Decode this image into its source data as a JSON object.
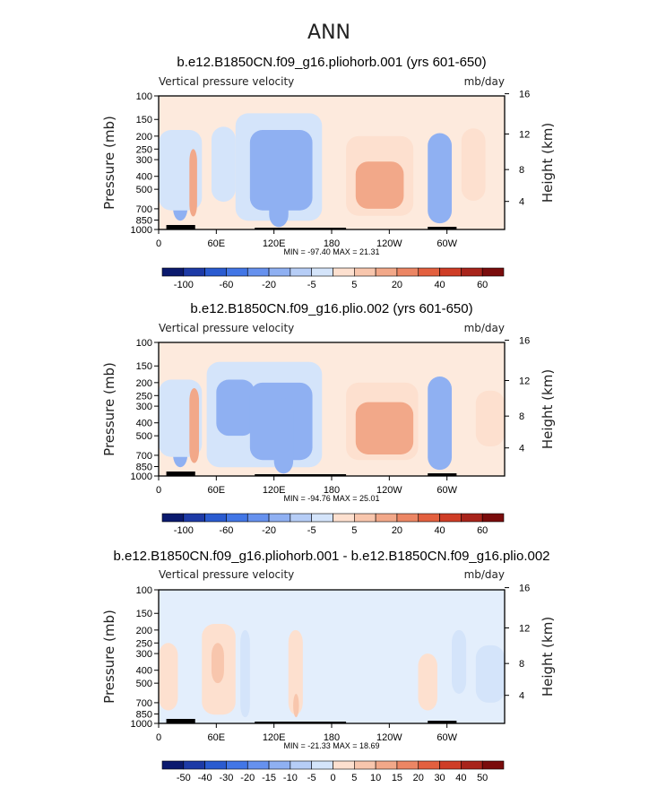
{
  "figure": {
    "title": "ANN"
  },
  "chart_data": [
    {
      "type": "heatmap",
      "title": "b.e12.B1850CN.f09_g16.pliohorb.001 (yrs 601-650)",
      "left_label": "Vertical pressure velocity",
      "right_label": "mb/day",
      "ylabel": "Pressure (mb)",
      "ylabel_right": "Height (km)",
      "x_ticks": [
        "0",
        "60E",
        "120E",
        "180",
        "120W",
        "60W"
      ],
      "x_tick_lon": [
        0,
        60,
        120,
        180,
        240,
        300
      ],
      "xlim": [
        0,
        360
      ],
      "y_ticks": [
        "100",
        "150",
        "200",
        "250",
        "300",
        "400",
        "500",
        "700",
        "850",
        "1000"
      ],
      "y_tick_values": [
        100,
        150,
        200,
        250,
        300,
        400,
        500,
        700,
        850,
        1000
      ],
      "ylim": [
        1000,
        100
      ],
      "yscale": "log",
      "height_ticks": [
        "4",
        "8",
        "12",
        "16"
      ],
      "height_tick_values": [
        4,
        8,
        12,
        16
      ],
      "stats": "MIN = -97.40   MAX =  21.31",
      "colorbar_labels": [
        "-100",
        "-60",
        "-20",
        "-5",
        "5",
        "20",
        "40",
        "60"
      ],
      "colorbar_label_slots": [
        1,
        3,
        5,
        7,
        9,
        11,
        13,
        15
      ],
      "colorbar_colors": [
        "#0b1a6e",
        "#1d3aa6",
        "#2a5bd0",
        "#4276e6",
        "#6691ee",
        "#8fb0f2",
        "#b6cdf6",
        "#d4e4fa",
        "#fde0cf",
        "#f8c6ad",
        "#f2a889",
        "#ec8664",
        "#e3603f",
        "#cf3d26",
        "#a8241b",
        "#7a0c0c"
      ],
      "cells": [
        {
          "lon": [
            15,
            30
          ],
          "p": [
            230,
            860
          ],
          "v": -20
        },
        {
          "lon": [
            0,
            45
          ],
          "p": [
            180,
            720
          ],
          "v": -5
        },
        {
          "lon": [
            32,
            40
          ],
          "p": [
            250,
            800
          ],
          "v": 20
        },
        {
          "lon": [
            55,
            80
          ],
          "p": [
            170,
            620
          ],
          "v": -5
        },
        {
          "lon": [
            80,
            170
          ],
          "p": [
            135,
            860
          ],
          "v": -5
        },
        {
          "lon": [
            95,
            160
          ],
          "p": [
            180,
            720
          ],
          "v": -20
        },
        {
          "lon": [
            115,
            135
          ],
          "p": [
            250,
            960
          ],
          "v": -20
        },
        {
          "lon": [
            195,
            265
          ],
          "p": [
            200,
            790
          ],
          "v": 5
        },
        {
          "lon": [
            205,
            255
          ],
          "p": [
            310,
            700
          ],
          "v": 20
        },
        {
          "lon": [
            280,
            305
          ],
          "p": [
            190,
            900
          ],
          "v": -20
        },
        {
          "lon": [
            315,
            340
          ],
          "p": [
            175,
            610
          ],
          "v": 5
        }
      ]
    },
    {
      "type": "heatmap",
      "title": "b.e12.B1850CN.f09_g16.plio.002 (yrs 601-650)",
      "left_label": "Vertical pressure velocity",
      "right_label": "mb/day",
      "ylabel": "Pressure (mb)",
      "ylabel_right": "Height (km)",
      "x_ticks": [
        "0",
        "60E",
        "120E",
        "180",
        "120W",
        "60W"
      ],
      "x_tick_lon": [
        0,
        60,
        120,
        180,
        240,
        300
      ],
      "xlim": [
        0,
        360
      ],
      "y_ticks": [
        "100",
        "150",
        "200",
        "250",
        "300",
        "400",
        "500",
        "700",
        "850",
        "1000"
      ],
      "y_tick_values": [
        100,
        150,
        200,
        250,
        300,
        400,
        500,
        700,
        850,
        1000
      ],
      "ylim": [
        1000,
        100
      ],
      "yscale": "log",
      "height_ticks": [
        "4",
        "8",
        "12",
        "16"
      ],
      "height_tick_values": [
        4,
        8,
        12,
        16
      ],
      "stats": "MIN = -94.76   MAX =  25.01",
      "colorbar_labels": [
        "-100",
        "-60",
        "-20",
        "-5",
        "5",
        "20",
        "40",
        "60"
      ],
      "colorbar_label_slots": [
        1,
        3,
        5,
        7,
        9,
        11,
        13,
        15
      ],
      "colorbar_colors": [
        "#0b1a6e",
        "#1d3aa6",
        "#2a5bd0",
        "#4276e6",
        "#6691ee",
        "#8fb0f2",
        "#b6cdf6",
        "#d4e4fa",
        "#fde0cf",
        "#f8c6ad",
        "#f2a889",
        "#ec8664",
        "#e3603f",
        "#cf3d26",
        "#a8241b",
        "#7a0c0c"
      ],
      "cells": [
        {
          "lon": [
            15,
            30
          ],
          "p": [
            260,
            860
          ],
          "v": -20
        },
        {
          "lon": [
            0,
            45
          ],
          "p": [
            190,
            720
          ],
          "v": -5
        },
        {
          "lon": [
            32,
            42
          ],
          "p": [
            220,
            800
          ],
          "v": 20
        },
        {
          "lon": [
            50,
            170
          ],
          "p": [
            140,
            860
          ],
          "v": -5
        },
        {
          "lon": [
            60,
            100
          ],
          "p": [
            190,
            500
          ],
          "v": -20
        },
        {
          "lon": [
            95,
            160
          ],
          "p": [
            200,
            760
          ],
          "v": -20
        },
        {
          "lon": [
            120,
            140
          ],
          "p": [
            260,
            960
          ],
          "v": -20
        },
        {
          "lon": [
            195,
            270
          ],
          "p": [
            200,
            760
          ],
          "v": 5
        },
        {
          "lon": [
            205,
            265
          ],
          "p": [
            280,
            690
          ],
          "v": 20
        },
        {
          "lon": [
            280,
            305
          ],
          "p": [
            180,
            900
          ],
          "v": -20
        },
        {
          "lon": [
            330,
            360
          ],
          "p": [
            230,
            600
          ],
          "v": 5
        }
      ]
    },
    {
      "type": "heatmap",
      "title": "b.e12.B1850CN.f09_g16.pliohorb.001 - b.e12.B1850CN.f09_g16.plio.002",
      "left_label": "Vertical pressure velocity",
      "right_label": "mb/day",
      "ylabel": "Pressure (mb)",
      "ylabel_right": "Height (km)",
      "x_ticks": [
        "0",
        "60E",
        "120E",
        "180",
        "120W",
        "60W"
      ],
      "x_tick_lon": [
        0,
        60,
        120,
        180,
        240,
        300
      ],
      "xlim": [
        0,
        360
      ],
      "y_ticks": [
        "100",
        "150",
        "200",
        "250",
        "300",
        "400",
        "500",
        "700",
        "850",
        "1000"
      ],
      "y_tick_values": [
        100,
        150,
        200,
        250,
        300,
        400,
        500,
        700,
        850,
        1000
      ],
      "ylim": [
        1000,
        100
      ],
      "yscale": "log",
      "height_ticks": [
        "4",
        "8",
        "12",
        "16"
      ],
      "height_tick_values": [
        4,
        8,
        12,
        16
      ],
      "stats": "MIN = -21.33   MAX =  18.69",
      "colorbar_labels": [
        "-50",
        "-40",
        "-30",
        "-20",
        "-15",
        "-10",
        "-5",
        "0",
        "5",
        "10",
        "15",
        "20",
        "30",
        "40",
        "50"
      ],
      "colorbar_label_slots": [
        1,
        2,
        3,
        4,
        5,
        6,
        7,
        8,
        9,
        10,
        11,
        12,
        13,
        14,
        15
      ],
      "colorbar_colors": [
        "#0b1a6e",
        "#1d3aa6",
        "#2a5bd0",
        "#4276e6",
        "#6691ee",
        "#8fb0f2",
        "#b6cdf6",
        "#d4e4fa",
        "#fde0cf",
        "#f8c6ad",
        "#f2a889",
        "#ec8664",
        "#e3603f",
        "#cf3d26",
        "#a8241b",
        "#7a0c0c"
      ],
      "cells": [
        {
          "lon": [
            0,
            20
          ],
          "p": [
            250,
            800
          ],
          "v": 3
        },
        {
          "lon": [
            45,
            80
          ],
          "p": [
            180,
            860
          ],
          "v": 3
        },
        {
          "lon": [
            55,
            68
          ],
          "p": [
            250,
            500
          ],
          "v": 10
        },
        {
          "lon": [
            85,
            95
          ],
          "p": [
            200,
            900
          ],
          "v": -5
        },
        {
          "lon": [
            135,
            150
          ],
          "p": [
            200,
            860
          ],
          "v": 3
        },
        {
          "lon": [
            140,
            146
          ],
          "p": [
            600,
            900
          ],
          "v": 10
        },
        {
          "lon": [
            270,
            290
          ],
          "p": [
            300,
            800
          ],
          "v": 3
        },
        {
          "lon": [
            305,
            320
          ],
          "p": [
            200,
            600
          ],
          "v": -3
        },
        {
          "lon": [
            330,
            360
          ],
          "p": [
            260,
            700
          ],
          "v": -5
        }
      ]
    }
  ]
}
